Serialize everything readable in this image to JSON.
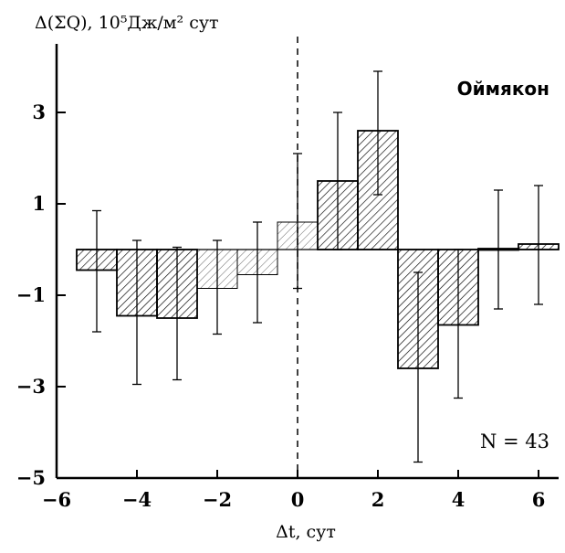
{
  "chart_data": {
    "type": "bar",
    "ylabel": "Δ(ΣQ), 10⁵Дж/м² сут",
    "xlabel": "Δt, сут",
    "annotation_station": "Оймякон",
    "annotation_n": "N = 43",
    "xlim": [
      -6,
      6.5
    ],
    "ylim": [
      -5,
      4.5
    ],
    "xticks": [
      -6,
      -4,
      -2,
      0,
      2,
      4,
      6
    ],
    "yticks": [
      -5,
      -3,
      -1,
      1,
      3
    ],
    "zero_line": 0,
    "grid": false,
    "x": [
      -5,
      -4,
      -3,
      -2,
      -1,
      0,
      1,
      2,
      3,
      4,
      5,
      6
    ],
    "values": [
      -0.45,
      -1.45,
      -1.5,
      -0.85,
      -0.55,
      0.6,
      1.5,
      2.6,
      -2.6,
      -1.65,
      0.02,
      0.12
    ],
    "error_low": [
      -1.8,
      -2.95,
      -2.85,
      -1.85,
      -1.6,
      -0.85,
      0.0,
      1.2,
      -4.65,
      -3.25,
      -1.3,
      -1.2
    ],
    "error_high": [
      0.85,
      0.2,
      0.05,
      0.2,
      0.6,
      2.1,
      3.0,
      3.9,
      -0.5,
      0.0,
      1.3,
      1.4
    ]
  }
}
